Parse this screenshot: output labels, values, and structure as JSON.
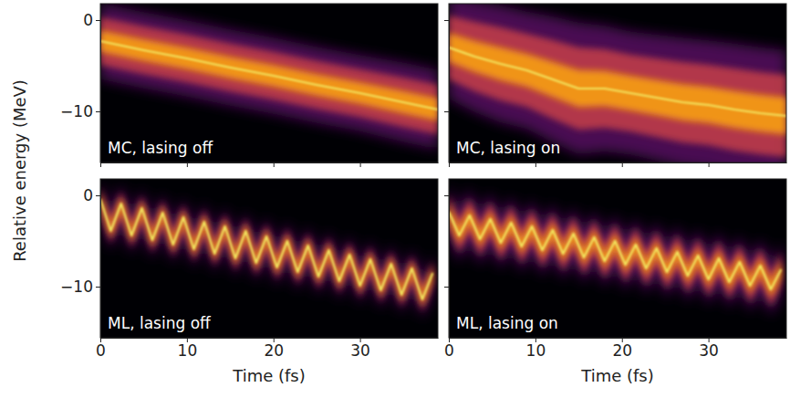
{
  "chart_data": [
    {
      "type": "area",
      "title": "MC, lasing off",
      "ylabel": "Relative energy (MeV)",
      "x": [
        0,
        5,
        10,
        15,
        20,
        25,
        30,
        35,
        39
      ],
      "values": [
        -2.3,
        -3.3,
        -4.2,
        -5.2,
        -6.1,
        -7.1,
        -8.0,
        -9.0,
        -9.8
      ],
      "spread": [
        2.6,
        2.6,
        2.6,
        2.6,
        2.6,
        2.6,
        2.6,
        2.7,
        2.7
      ],
      "xlim": [
        0,
        39
      ],
      "xticks": [
        0,
        10,
        20,
        30
      ],
      "ylim": [
        -15.6,
        1.8
      ],
      "yticks": [
        0,
        {
          "value": -10,
          "label": "−10"
        }
      ],
      "tick_labels": "y"
    },
    {
      "type": "area",
      "title": "MC, lasing on",
      "x": [
        0,
        3,
        6,
        9,
        12,
        15,
        18,
        21,
        24,
        27,
        30,
        33,
        36,
        39
      ],
      "values": [
        -3.0,
        -4.0,
        -4.8,
        -5.5,
        -6.5,
        -7.5,
        -7.5,
        -8.0,
        -8.5,
        -9.0,
        -9.3,
        -9.8,
        -10.2,
        -10.5
      ],
      "spread": [
        3.5,
        3.8,
        4.0,
        4.0,
        4.3,
        4.5,
        4.3,
        4.2,
        4.3,
        4.4,
        4.4,
        4.5,
        4.5,
        4.5
      ],
      "xlim": [
        0,
        39
      ],
      "xticks": [
        0,
        10,
        20,
        30
      ],
      "ylim": [
        -15.6,
        1.8
      ],
      "yticks": [
        0,
        {
          "value": -10,
          "label": "−10"
        }
      ],
      "tick_labels": false
    },
    {
      "type": "area",
      "title": "ML, lasing off",
      "xlabel": "Time (fs)",
      "x": [
        0,
        1.2,
        2.4,
        3.6,
        4.8,
        6,
        7.2,
        8.4,
        9.6,
        10.8,
        12,
        13.2,
        14.4,
        15.6,
        16.8,
        18,
        19.2,
        20.4,
        21.6,
        22.8,
        24,
        25.2,
        26.4,
        27.6,
        28.8,
        30,
        31.2,
        32.4,
        33.6,
        34.8,
        36,
        37.2,
        38.4
      ],
      "values": [
        -0.4,
        -3.9,
        -0.9,
        -4.4,
        -1.4,
        -4.9,
        -1.9,
        -5.4,
        -2.4,
        -5.9,
        -2.9,
        -6.4,
        -3.4,
        -6.9,
        -3.9,
        -7.4,
        -4.5,
        -7.9,
        -5.0,
        -8.4,
        -5.5,
        -8.9,
        -6.0,
        -9.4,
        -6.5,
        -9.9,
        -7.0,
        -10.4,
        -7.5,
        -10.9,
        -8.0,
        -11.4,
        -8.5
      ],
      "spread": [
        1.3,
        1.3,
        1.3,
        1.3,
        1.3,
        1.3,
        1.3,
        1.3,
        1.3,
        1.3,
        1.3,
        1.3,
        1.3,
        1.3,
        1.3,
        1.3,
        1.3,
        1.3,
        1.3,
        1.3,
        1.3,
        1.3,
        1.3,
        1.3,
        1.3,
        1.3,
        1.3,
        1.3,
        1.3,
        1.3,
        1.3,
        1.3,
        1.3
      ],
      "xlim": [
        0,
        39
      ],
      "xticks": [
        0,
        10,
        20,
        30
      ],
      "ylim": [
        -15.6,
        1.8
      ],
      "yticks": [
        0,
        {
          "value": -10,
          "label": "−10"
        }
      ],
      "tick_labels": true
    },
    {
      "type": "area",
      "title": "ML, lasing on",
      "xlabel": "Time (fs)",
      "x": [
        0,
        1.2,
        2.4,
        3.6,
        4.8,
        6,
        7.2,
        8.4,
        9.6,
        10.8,
        12,
        13.2,
        14.4,
        15.6,
        16.8,
        18,
        19.2,
        20.4,
        21.6,
        22.8,
        24,
        25.2,
        26.4,
        27.6,
        28.8,
        30,
        31.2,
        32.4,
        33.6,
        34.8,
        36,
        37.2,
        38.4
      ],
      "values": [
        -1.8,
        -4.4,
        -2.2,
        -4.8,
        -2.6,
        -5.2,
        -3.0,
        -5.6,
        -3.4,
        -6.0,
        -3.8,
        -6.4,
        -4.2,
        -6.8,
        -4.6,
        -7.2,
        -5.0,
        -7.6,
        -5.4,
        -8.0,
        -5.8,
        -8.4,
        -6.2,
        -8.8,
        -6.6,
        -9.2,
        -6.9,
        -9.5,
        -7.3,
        -9.9,
        -7.7,
        -10.3,
        -8.1
      ],
      "spread": [
        1.8,
        1.8,
        1.8,
        1.8,
        1.8,
        1.8,
        1.8,
        1.8,
        1.8,
        1.8,
        1.8,
        1.8,
        1.8,
        1.8,
        1.8,
        1.8,
        1.8,
        1.8,
        1.8,
        1.8,
        1.8,
        1.8,
        1.8,
        1.8,
        1.8,
        1.8,
        1.8,
        1.8,
        1.8,
        1.8,
        1.8,
        1.8,
        1.8
      ],
      "xlim": [
        0,
        39
      ],
      "xticks": [
        0,
        10,
        20,
        30
      ],
      "ylim": [
        -15.6,
        1.8
      ],
      "yticks": [
        0,
        {
          "value": -10,
          "label": "−10"
        }
      ],
      "tick_labels": "x"
    }
  ]
}
